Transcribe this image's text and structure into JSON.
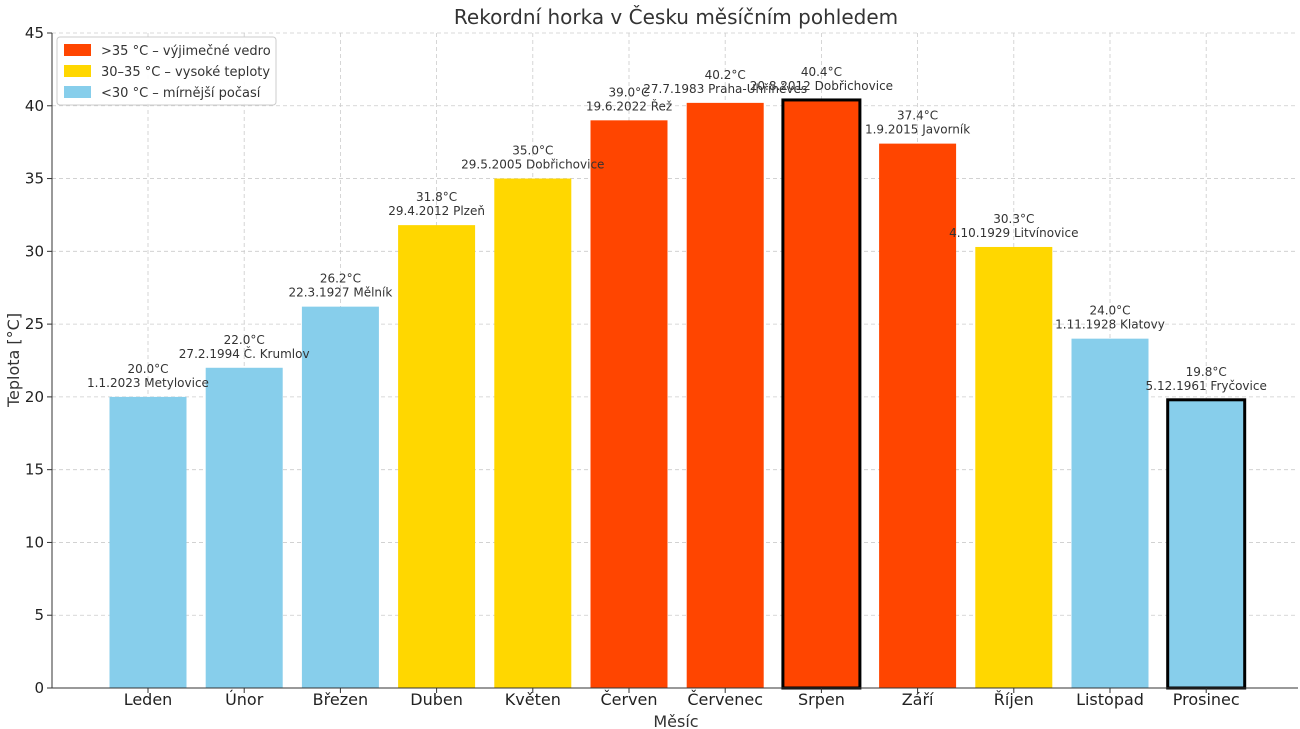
{
  "chart_data": {
    "type": "bar",
    "title": "Rekordní horka v Česku měsíčním pohledem",
    "xlabel": "Měsíc",
    "ylabel": "Teplota [°C]",
    "ylim": [
      0,
      45
    ],
    "yticks": [
      0,
      5,
      10,
      15,
      20,
      25,
      30,
      35,
      40,
      45
    ],
    "grid": true,
    "legend_position": "top-left",
    "categories": [
      "Leden",
      "Únor",
      "Březen",
      "Duben",
      "Květen",
      "Červen",
      "Červenec",
      "Srpen",
      "Září",
      "Říjen",
      "Listopad",
      "Prosinec"
    ],
    "values": [
      20.0,
      22.0,
      26.2,
      31.8,
      35.0,
      39.0,
      40.2,
      40.4,
      37.4,
      30.3,
      24.0,
      19.8
    ],
    "value_labels": [
      "20.0°C",
      "22.0°C",
      "26.2°C",
      "31.8°C",
      "35.0°C",
      "39.0°C",
      "40.2°C",
      "40.4°C",
      "37.4°C",
      "30.3°C",
      "24.0°C",
      "19.8°C"
    ],
    "record_labels": [
      "1.1.2023 Metylovice",
      "27.2.1994 Č. Krumlov",
      "22.3.1927 Mělník",
      "29.4.2012 Plzeň",
      "29.5.2005 Dobřichovice",
      "19.6.2022 Řež",
      "27.7.1983 Praha-Uhříněves",
      "20.8.2012 Dobřichovice",
      "1.9.2015 Javorník",
      "4.10.1929 Litvínovice",
      "1.11.1928 Klatovy",
      "5.12.1961 Fryčovice"
    ],
    "bar_groups": [
      "mild",
      "mild",
      "mild",
      "high",
      "high",
      "extreme",
      "extreme",
      "extreme",
      "extreme",
      "high",
      "mild",
      "mild"
    ],
    "highlighted": [
      false,
      false,
      false,
      false,
      false,
      false,
      false,
      true,
      false,
      false,
      false,
      true
    ],
    "legend": [
      {
        "key": "extreme",
        "label": ">35 °C – výjimečné vedro",
        "color": "#FF4500"
      },
      {
        "key": "high",
        "label": "30–35 °C – vysoké teploty",
        "color": "#FFD700"
      },
      {
        "key": "mild",
        "label": "<30 °C – mírnější počasí",
        "color": "#87CEEB"
      }
    ]
  }
}
